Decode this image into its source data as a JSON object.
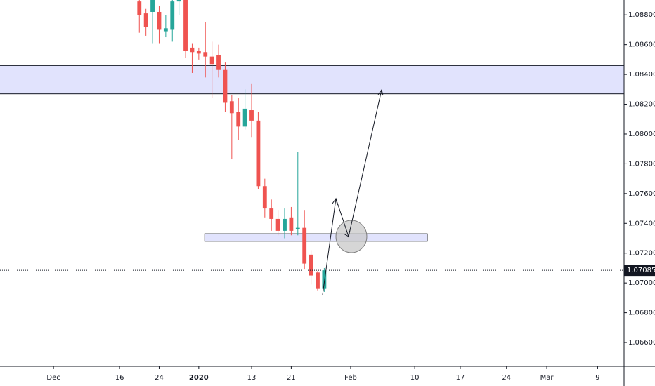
{
  "chart_data": {
    "type": "candlestick",
    "x": [
      21,
      22,
      23,
      24,
      25,
      26,
      27,
      28,
      29,
      30,
      31,
      32,
      33,
      34,
      35,
      36,
      37,
      38,
      39,
      40,
      41,
      42,
      43,
      44,
      45,
      46,
      47,
      48,
      49
    ],
    "open": [
      1.0889,
      1.0881,
      1.0882,
      1.0882,
      1.0869,
      1.087,
      1.0889,
      1.0892,
      1.0858,
      1.0856,
      1.0855,
      1.0852,
      1.0853,
      1.0843,
      1.0822,
      1.0815,
      1.0805,
      1.0816,
      1.0809,
      1.0765,
      1.075,
      1.0743,
      1.0735,
      1.0744,
      1.0736,
      1.0737,
      1.0719,
      1.0707,
      1.0696
    ],
    "high": [
      1.0891,
      1.0884,
      1.0893,
      1.0886,
      1.088,
      1.0893,
      1.0894,
      1.0895,
      1.0861,
      1.0858,
      1.0875,
      1.0862,
      1.086,
      1.0848,
      1.0826,
      1.0824,
      1.083,
      1.0834,
      1.0815,
      1.077,
      1.0756,
      1.0749,
      1.075,
      1.0751,
      1.0788,
      1.0749,
      1.0722,
      1.0708,
      1.071
    ],
    "low": [
      1.0868,
      1.0866,
      1.0861,
      1.0861,
      1.0865,
      1.0862,
      1.088,
      1.0851,
      1.0841,
      1.085,
      1.0838,
      1.0824,
      1.0838,
      1.0815,
      1.0783,
      1.0796,
      1.0803,
      1.0798,
      1.0763,
      1.0744,
      1.0735,
      1.0732,
      1.073,
      1.0732,
      1.0732,
      1.0709,
      1.0699,
      1.0695,
      1.0694
    ],
    "close": [
      1.088,
      1.0872,
      1.089,
      1.087,
      1.0871,
      1.0889,
      1.0891,
      1.0856,
      1.0855,
      1.0854,
      1.0852,
      1.0847,
      1.0843,
      1.0821,
      1.0814,
      1.0805,
      1.0817,
      1.0809,
      1.0765,
      1.075,
      1.0743,
      1.0735,
      1.0743,
      1.0735,
      1.0737,
      1.0713,
      1.0705,
      1.0696,
      1.07085
    ],
    "up_color": "#26a69a",
    "down_color": "#ef5350",
    "last_price": 1.07085,
    "zones": [
      {
        "range": [
          1.0827,
          1.0846
        ]
      },
      {
        "range": [
          1.0728,
          1.0733
        ],
        "x": [
          30.9,
          64.6
        ]
      }
    ],
    "zone_color": "#e1e3fd",
    "xlim": [
      -0.1,
      94.4
    ],
    "ylim": [
      1.0644,
      1.089
    ],
    "xticks": [
      {
        "value": 8,
        "label": "Dec"
      },
      {
        "value": 18,
        "label": "16"
      },
      {
        "value": 24,
        "label": "24"
      },
      {
        "value": 30,
        "label": "2020"
      },
      {
        "value": 38,
        "label": "13"
      },
      {
        "value": 44,
        "label": "21"
      },
      {
        "value": 53,
        "label": "Feb"
      },
      {
        "value": 62.7,
        "label": "10"
      },
      {
        "value": 69.6,
        "label": "17"
      },
      {
        "value": 76.6,
        "label": "24"
      },
      {
        "value": 82.7,
        "label": "Mar"
      },
      {
        "value": 90.4,
        "label": "9"
      }
    ],
    "yticks": [
      {
        "value": 1.066,
        "label": "1.06600"
      },
      {
        "value": 1.068,
        "label": "1.06800"
      },
      {
        "value": 1.07,
        "label": "1.07000"
      },
      {
        "value": 1.072,
        "label": "1.07200"
      },
      {
        "value": 1.074,
        "label": "1.07400"
      },
      {
        "value": 1.076,
        "label": "1.07600"
      },
      {
        "value": 1.078,
        "label": "1.07800"
      },
      {
        "value": 1.08,
        "label": "1.08000"
      },
      {
        "value": 1.082,
        "label": "1.08200"
      },
      {
        "value": 1.084,
        "label": "1.08400"
      },
      {
        "value": 1.086,
        "label": "1.08600"
      },
      {
        "value": 1.088,
        "label": "1.08800"
      }
    ]
  }
}
